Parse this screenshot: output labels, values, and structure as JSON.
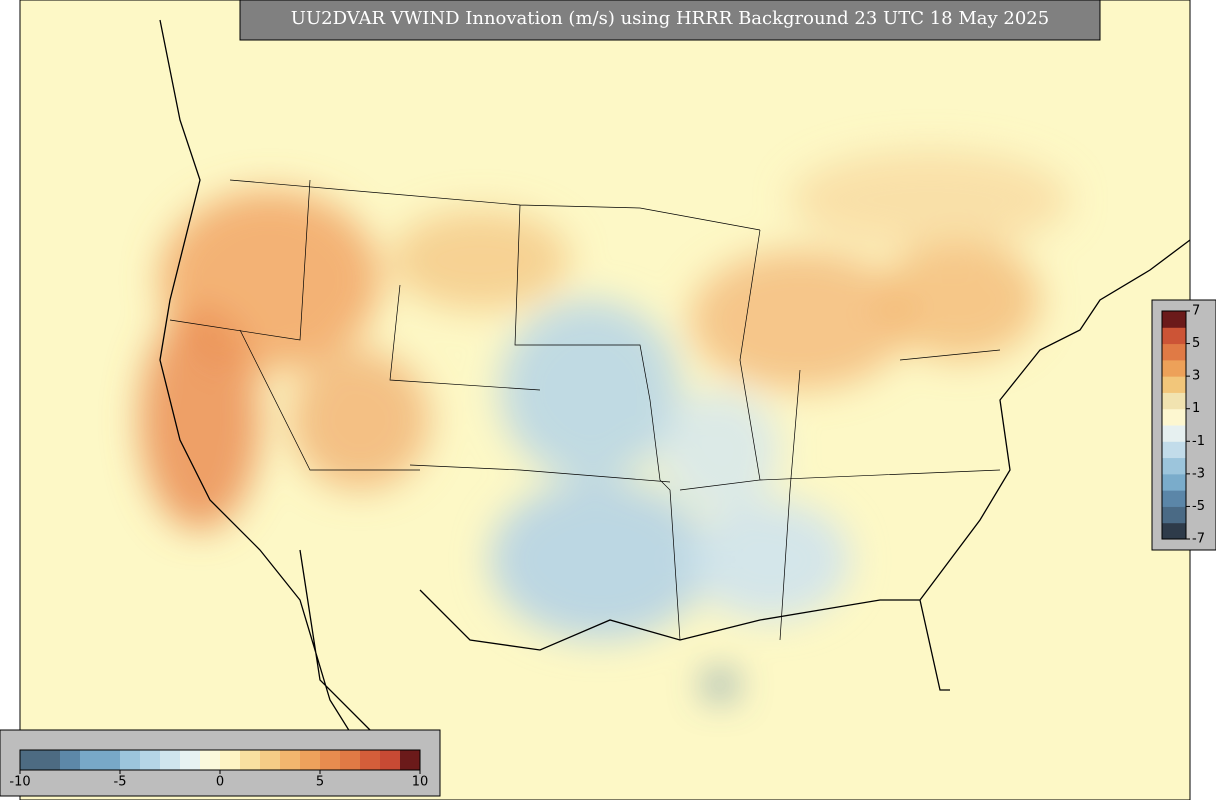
{
  "title": "UU2DVAR VWIND Innovation (m/s) using HRRR Background 23 UTC 18 May 2025",
  "colorbars": [
    {
      "orientation": "vertical",
      "lim": [
        -7,
        7
      ],
      "ticks": [
        7,
        5,
        3,
        1,
        -1,
        -3,
        -5,
        -7
      ],
      "colors": [
        "#2e3b4a",
        "#4a6a85",
        "#5b86a8",
        "#7aaccb",
        "#9cc5dc",
        "#c2dcea",
        "#e6f0f0",
        "#fdf7d0",
        "#f1e3b0",
        "#f2c67a",
        "#eda159",
        "#e07a45",
        "#cc5436",
        "#6b1a1a"
      ]
    },
    {
      "orientation": "horizontal",
      "lim": [
        -10,
        10
      ],
      "ticks": [
        -10,
        -5,
        0,
        5,
        10
      ],
      "colors": [
        "#4d6b82",
        "#4d6b82",
        "#5d88a8",
        "#78a8c8",
        "#78a8c8",
        "#9cc5dc",
        "#b5d5e6",
        "#cfe5ee",
        "#e6f2f2",
        "#fbf9dc",
        "#fdf4c4",
        "#f8e0a0",
        "#f5cc86",
        "#f2b66e",
        "#eea25c",
        "#e88c4f",
        "#e07a45",
        "#d45e3a",
        "#c84a34",
        "#6b1a1a"
      ]
    }
  ]
}
